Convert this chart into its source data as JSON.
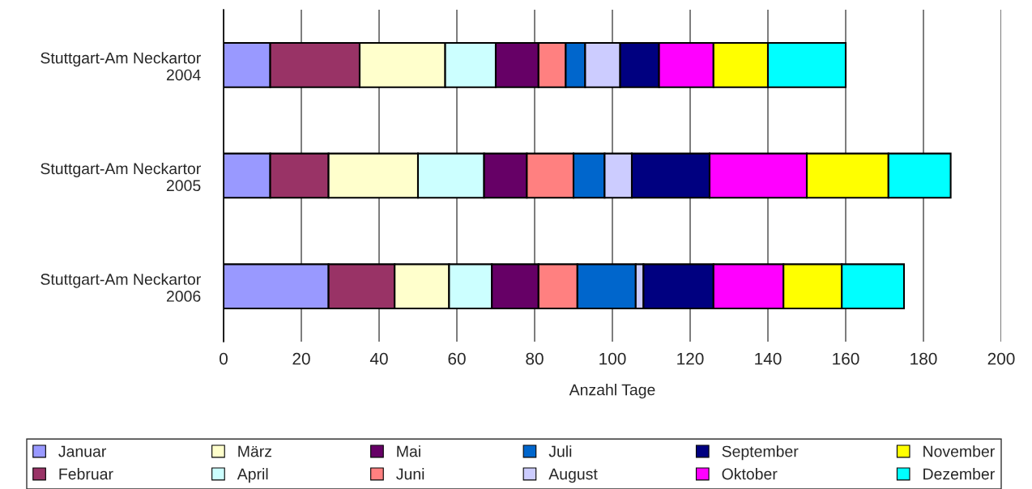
{
  "chart_data": {
    "type": "bar",
    "orientation": "horizontal",
    "stacked": true,
    "xlabel": "Anzahl Tage",
    "categories": [
      "Stuttgart-Am Neckartor\n2004",
      "Stuttgart-Am Neckartor\n2005",
      "Stuttgart-Am Neckartor\n2006"
    ],
    "series": [
      {
        "name": "Januar",
        "color": "#9999ff",
        "values": [
          12,
          12,
          27
        ]
      },
      {
        "name": "Februar",
        "color": "#993366",
        "values": [
          23,
          15,
          17
        ]
      },
      {
        "name": "März",
        "color": "#ffffcc",
        "values": [
          22,
          23,
          14
        ]
      },
      {
        "name": "April",
        "color": "#ccffff",
        "values": [
          13,
          17,
          11
        ]
      },
      {
        "name": "Mai",
        "color": "#660066",
        "values": [
          11,
          11,
          12
        ]
      },
      {
        "name": "Juni",
        "color": "#ff8080",
        "values": [
          7,
          12,
          10
        ]
      },
      {
        "name": "Juli",
        "color": "#0066cc",
        "values": [
          5,
          8,
          15
        ]
      },
      {
        "name": "August",
        "color": "#ccccff",
        "values": [
          9,
          7,
          2
        ]
      },
      {
        "name": "September",
        "color": "#000080",
        "values": [
          10,
          20,
          18
        ]
      },
      {
        "name": "Oktober",
        "color": "#ff00ff",
        "values": [
          14,
          25,
          18
        ]
      },
      {
        "name": "November",
        "color": "#ffff00",
        "values": [
          14,
          21,
          15
        ]
      },
      {
        "name": "Dezember",
        "color": "#00ffff",
        "values": [
          20,
          16,
          16
        ]
      }
    ],
    "xlim": [
      0,
      200
    ],
    "xticks": [
      0,
      20,
      40,
      60,
      80,
      100,
      120,
      140,
      160,
      180,
      200
    ],
    "grid": "x",
    "legend": "bottom"
  }
}
